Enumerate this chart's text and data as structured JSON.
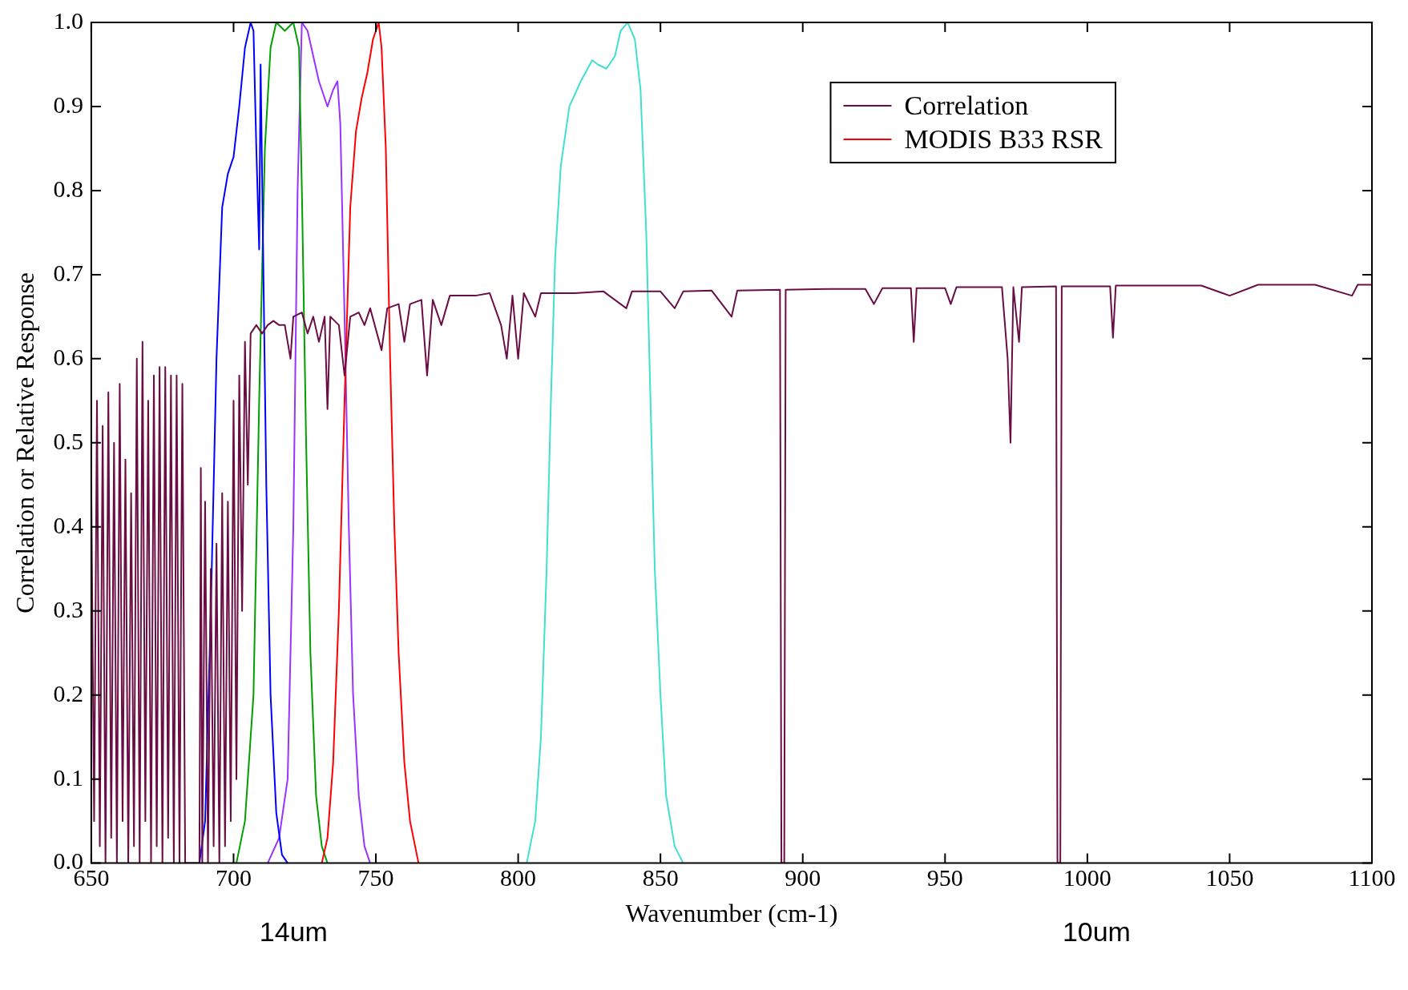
{
  "chart_data": {
    "type": "line",
    "xlabel": "Wavenumber (cm-1)",
    "ylabel": "Correlation or Relative Response",
    "xlim": [
      650,
      1100
    ],
    "xticks": [
      650,
      700,
      750,
      800,
      850,
      900,
      950,
      1000,
      1050,
      1100
    ],
    "ylim": [
      0,
      1
    ],
    "yticks": [
      {
        "value": 0,
        "label": "0.0"
      },
      {
        "value": 0.1,
        "label": "0.1"
      },
      {
        "value": 0.2,
        "label": "0.2"
      },
      {
        "value": 0.3,
        "label": "0.3"
      },
      {
        "value": 0.4,
        "label": "0.4"
      },
      {
        "value": 0.5,
        "label": "0.5"
      },
      {
        "value": 0.6,
        "label": "0.6"
      },
      {
        "value": 0.7,
        "label": "0.7"
      },
      {
        "value": 0.8,
        "label": "0.8"
      },
      {
        "value": 0.9,
        "label": "0.9"
      },
      {
        "value": 1,
        "label": "1.0"
      }
    ],
    "legend": "top right",
    "marker": "none",
    "annotations": [
      "14um",
      "10um"
    ],
    "series": [
      {
        "name": "Correlation",
        "color": "#6b0d45",
        "x": [
          650,
          651,
          652,
          653,
          654,
          655,
          656,
          657,
          658,
          659,
          660,
          661,
          662,
          663,
          664,
          665,
          666,
          667,
          668,
          669,
          670,
          671,
          672,
          673,
          674,
          675,
          676,
          677,
          678,
          679,
          680,
          681,
          682,
          683,
          688,
          688.5,
          689,
          690,
          691,
          692,
          693,
          694,
          695,
          696,
          697,
          698,
          699,
          700,
          701,
          702,
          703,
          704,
          705,
          706,
          708,
          710,
          712,
          714,
          716,
          718,
          720,
          721,
          724,
          726,
          728,
          730,
          732,
          733,
          734,
          737,
          739,
          741,
          744,
          746,
          748,
          752,
          754,
          758,
          760,
          762,
          766,
          768,
          770,
          773,
          776,
          785,
          790,
          794,
          796,
          798,
          800,
          802,
          806,
          808,
          820,
          830,
          838,
          840,
          850,
          855,
          858,
          868,
          875,
          877,
          892,
          892.5,
          893.5,
          894,
          910,
          922,
          925,
          928,
          938,
          939,
          940,
          950,
          952,
          954,
          970,
          972,
          973,
          974,
          976,
          977,
          989,
          989.5,
          990.5,
          991,
          1008,
          1009,
          1010,
          1040,
          1050,
          1060,
          1080,
          1093,
          1095,
          1100
        ],
        "values": [
          0.45,
          0.05,
          0.55,
          0.02,
          0.52,
          0,
          0.56,
          0.03,
          0.5,
          0,
          0.57,
          0.05,
          0.48,
          0,
          0.44,
          0.02,
          0.6,
          0,
          0.62,
          0.05,
          0.55,
          0,
          0.58,
          0.02,
          0.59,
          0,
          0.59,
          0.03,
          0.58,
          0,
          0.58,
          0,
          0.57,
          0,
          0,
          0.47,
          0,
          0.43,
          0,
          0.35,
          0.02,
          0.38,
          0,
          0.44,
          0.02,
          0.43,
          0.05,
          0.55,
          0.1,
          0.58,
          0.3,
          0.62,
          0.45,
          0.63,
          0.64,
          0.63,
          0.64,
          0.645,
          0.64,
          0.64,
          0.6,
          0.65,
          0.655,
          0.63,
          0.65,
          0.62,
          0.65,
          0.54,
          0.65,
          0.64,
          0.58,
          0.65,
          0.655,
          0.64,
          0.66,
          0.61,
          0.66,
          0.665,
          0.62,
          0.665,
          0.67,
          0.58,
          0.67,
          0.64,
          0.675,
          0.675,
          0.678,
          0.64,
          0.6,
          0.675,
          0.6,
          0.678,
          0.65,
          0.678,
          0.678,
          0.68,
          0.66,
          0.68,
          0.68,
          0.66,
          0.68,
          0.681,
          0.65,
          0.681,
          0.682,
          0,
          0,
          0.682,
          0.683,
          0.683,
          0.665,
          0.684,
          0.684,
          0.62,
          0.684,
          0.684,
          0.665,
          0.685,
          0.685,
          0.6,
          0.5,
          0.685,
          0.62,
          0.685,
          0.686,
          0,
          0,
          0.686,
          0.686,
          0.625,
          0.687,
          0.687,
          0.675,
          0.688,
          0.688,
          0.675,
          0.688,
          0.688
        ]
      },
      {
        "name": "MODIS B33 RSR",
        "color": "#ff0000",
        "x": [
          731,
          733,
          735,
          737,
          739,
          741,
          743,
          745,
          747,
          749,
          751,
          752,
          753.5,
          755,
          756.5,
          758,
          760,
          762,
          765
        ],
        "values": [
          0,
          0.03,
          0.12,
          0.3,
          0.55,
          0.78,
          0.87,
          0.91,
          0.94,
          0.98,
          1.0,
          0.97,
          0.85,
          0.6,
          0.4,
          0.25,
          0.12,
          0.05,
          0
        ]
      },
      {
        "color": "#0000ff",
        "x": [
          688,
          690,
          692,
          694,
          696,
          698,
          700,
          702,
          704,
          706,
          707,
          708,
          709,
          709.5,
          710.5,
          711.5,
          713,
          715,
          717,
          719
        ],
        "values": [
          0,
          0.05,
          0.3,
          0.6,
          0.78,
          0.82,
          0.84,
          0.9,
          0.97,
          1.0,
          0.99,
          0.85,
          0.73,
          0.95,
          0.7,
          0.45,
          0.2,
          0.06,
          0.01,
          0
        ]
      },
      {
        "color": "#00a000",
        "x": [
          701,
          704,
          707,
          709,
          711,
          713,
          715,
          718,
          721,
          723,
          724,
          725.5,
          727,
          729,
          731,
          733
        ],
        "values": [
          0,
          0.05,
          0.2,
          0.55,
          0.85,
          0.97,
          1.0,
          0.99,
          1.0,
          0.97,
          0.8,
          0.5,
          0.25,
          0.08,
          0.02,
          0
        ]
      },
      {
        "color": "#9933ff",
        "x": [
          712,
          716,
          719,
          721,
          722.5,
          724,
          726,
          728,
          730,
          733,
          735,
          736.5,
          737.5,
          739,
          740.5,
          742,
          744,
          746,
          748
        ],
        "values": [
          0,
          0.03,
          0.1,
          0.4,
          0.8,
          1.0,
          0.99,
          0.96,
          0.93,
          0.9,
          0.92,
          0.93,
          0.88,
          0.65,
          0.4,
          0.2,
          0.08,
          0.02,
          0
        ]
      },
      {
        "color": "#40e0d0",
        "x": [
          803,
          806,
          808,
          810,
          811.5,
          813,
          815,
          818,
          822,
          826,
          828,
          831,
          834,
          836,
          838.5,
          841,
          843,
          845,
          846.5,
          848,
          850,
          852,
          855,
          858
        ],
        "values": [
          0,
          0.05,
          0.15,
          0.35,
          0.55,
          0.72,
          0.83,
          0.9,
          0.93,
          0.955,
          0.95,
          0.945,
          0.96,
          0.99,
          1.0,
          0.98,
          0.92,
          0.75,
          0.55,
          0.35,
          0.2,
          0.08,
          0.02,
          0
        ]
      }
    ]
  }
}
